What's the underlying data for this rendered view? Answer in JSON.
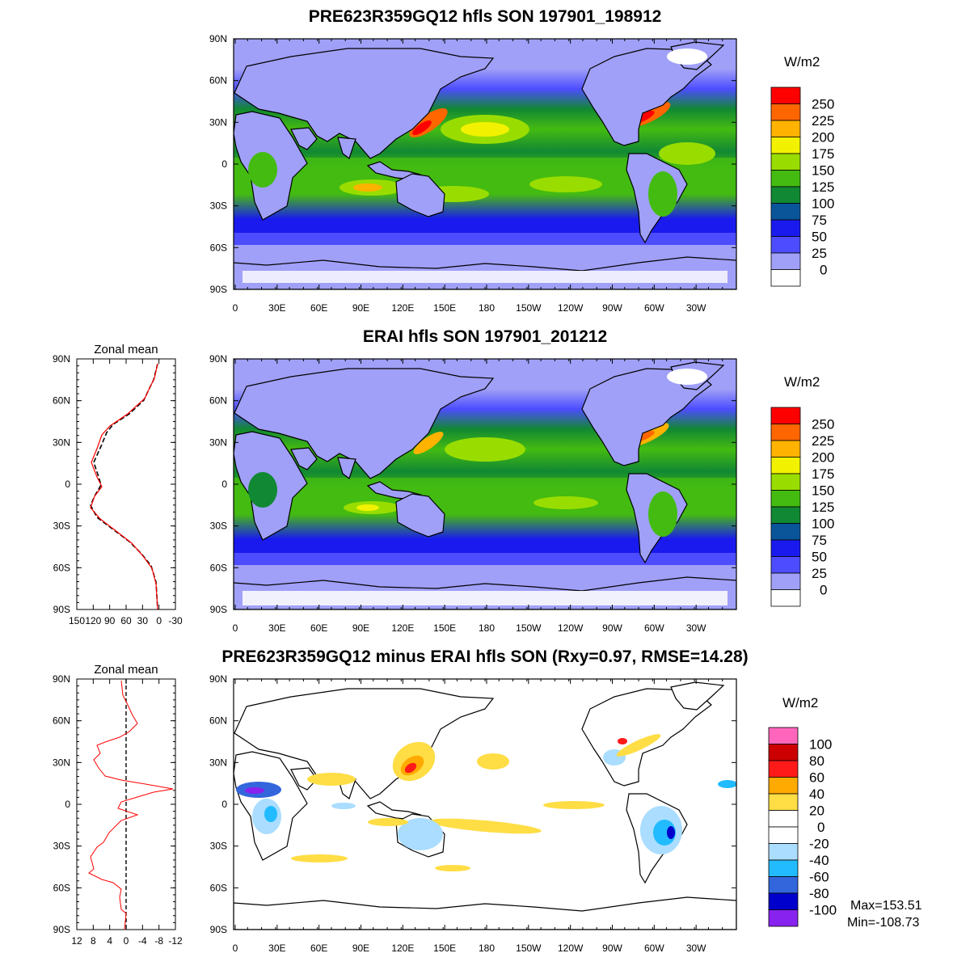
{
  "panels": [
    {
      "id": "model",
      "title": "PRE623R359GQ12 hfls SON 197901_198912",
      "colorbar": {
        "units": "W/m2",
        "labels": [
          "250",
          "225",
          "200",
          "175",
          "150",
          "125",
          "100",
          "75",
          "50",
          "25",
          "0"
        ],
        "colors": [
          "#ff0000",
          "#ff6600",
          "#ffb300",
          "#f2f200",
          "#99dd00",
          "#44bb11",
          "#118833",
          "#0a5599",
          "#1a1aee",
          "#4d4dff",
          "#a0a0f8",
          "#ffffff"
        ]
      }
    },
    {
      "id": "obs",
      "title": "ERAI hfls SON 197901_201212",
      "colorbar": {
        "units": "W/m2",
        "labels": [
          "250",
          "225",
          "200",
          "175",
          "150",
          "125",
          "100",
          "75",
          "50",
          "25",
          "0"
        ],
        "colors": [
          "#ff0000",
          "#ff6600",
          "#ffb300",
          "#f2f200",
          "#99dd00",
          "#44bb11",
          "#118833",
          "#0a5599",
          "#1a1aee",
          "#4d4dff",
          "#a0a0f8",
          "#ffffff"
        ]
      },
      "zonal": {
        "title": "Zonal mean",
        "xticks": [
          "150",
          "120",
          "90",
          "60",
          "30",
          "0",
          "-30"
        ]
      }
    },
    {
      "id": "diff",
      "title": "PRE623R359GQ12 minus ERAI hfls SON (Rxy=0.97, RMSE=14.28)",
      "colorbar": {
        "units": "W/m2",
        "labels": [
          "100",
          "80",
          "60",
          "40",
          "20",
          "0",
          "-20",
          "-40",
          "-60",
          "-80",
          "-100"
        ],
        "colors": [
          "#ff66bb",
          "#cc0000",
          "#ff1a1a",
          "#ffaa00",
          "#ffdd44",
          "#ffffff",
          "#ffffff",
          "#aaddff",
          "#22bbff",
          "#3366dd",
          "#0000cc",
          "#8822ee"
        ]
      },
      "zonal": {
        "title": "Zonal mean",
        "xticks": [
          "12",
          "8",
          "4",
          "0",
          "-4",
          "-8",
          "-12"
        ]
      },
      "stats": {
        "max": "Max=153.51",
        "min": "Min=-108.73"
      }
    }
  ],
  "lat_labels": [
    "90N",
    "60N",
    "30N",
    "0",
    "30S",
    "60S",
    "90S"
  ],
  "lon_labels": [
    "0",
    "30E",
    "60E",
    "90E",
    "120E",
    "150E",
    "180",
    "150W",
    "120W",
    "90W",
    "60W",
    "30W"
  ]
}
